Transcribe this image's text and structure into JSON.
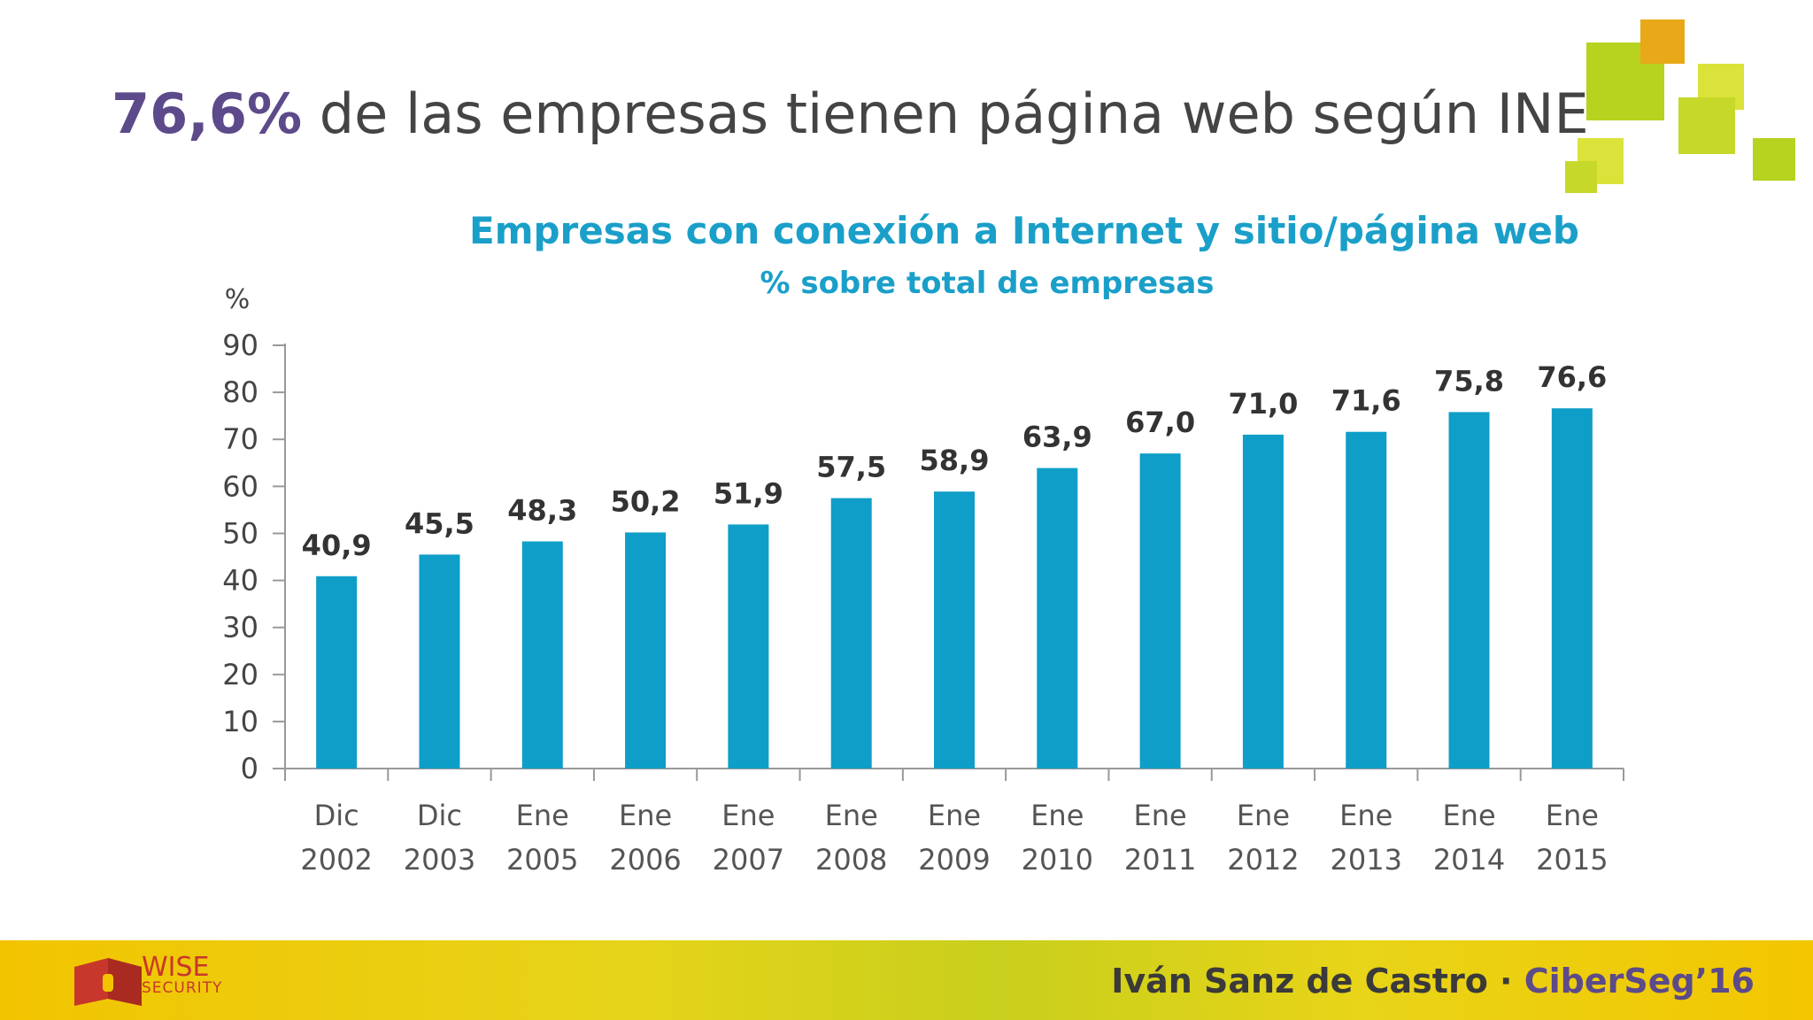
{
  "slide": {
    "highlight": "76,6%",
    "title_rest": " de las empresas tienen página web según INE"
  },
  "chart_data": {
    "type": "bar",
    "title": "Empresas con conexión a Internet y sitio/página web",
    "subtitle": "% sobre total de empresas",
    "ylabel": "%",
    "ylim": [
      0,
      90
    ],
    "yticks": [
      0,
      10,
      20,
      30,
      40,
      50,
      60,
      70,
      80,
      90
    ],
    "categories": [
      [
        "Dic",
        "2002"
      ],
      [
        "Dic",
        "2003"
      ],
      [
        "Ene",
        "2005"
      ],
      [
        "Ene",
        "2006"
      ],
      [
        "Ene",
        "2007"
      ],
      [
        "Ene",
        "2008"
      ],
      [
        "Ene",
        "2009"
      ],
      [
        "Ene",
        "2010"
      ],
      [
        "Ene",
        "2011"
      ],
      [
        "Ene",
        "2012"
      ],
      [
        "Ene",
        "2013"
      ],
      [
        "Ene",
        "2014"
      ],
      [
        "Ene",
        "2015"
      ]
    ],
    "values": [
      40.9,
      45.5,
      48.3,
      50.2,
      51.9,
      57.5,
      58.9,
      63.9,
      67.0,
      71.0,
      71.6,
      75.8,
      76.6
    ],
    "data_labels": [
      "40,9",
      "45,5",
      "48,3",
      "50,2",
      "51,9",
      "57,5",
      "58,9",
      "63,9",
      "67,0",
      "71,0",
      "71,6",
      "75,8",
      "76,6"
    ],
    "bar_color": "#0e9ec8",
    "grid": false,
    "legend": "none"
  },
  "footer": {
    "logo_line1": "WISE",
    "logo_line2": "SECURITY",
    "author": "Iván Sanz de Castro",
    "separator": " · ",
    "event": "CiberSeg’16"
  },
  "colors": {
    "highlight": "#5c4a8a",
    "chart_title": "#1a9fc9",
    "deco_green": "#b7d21f",
    "deco_orange": "#e8a817"
  }
}
